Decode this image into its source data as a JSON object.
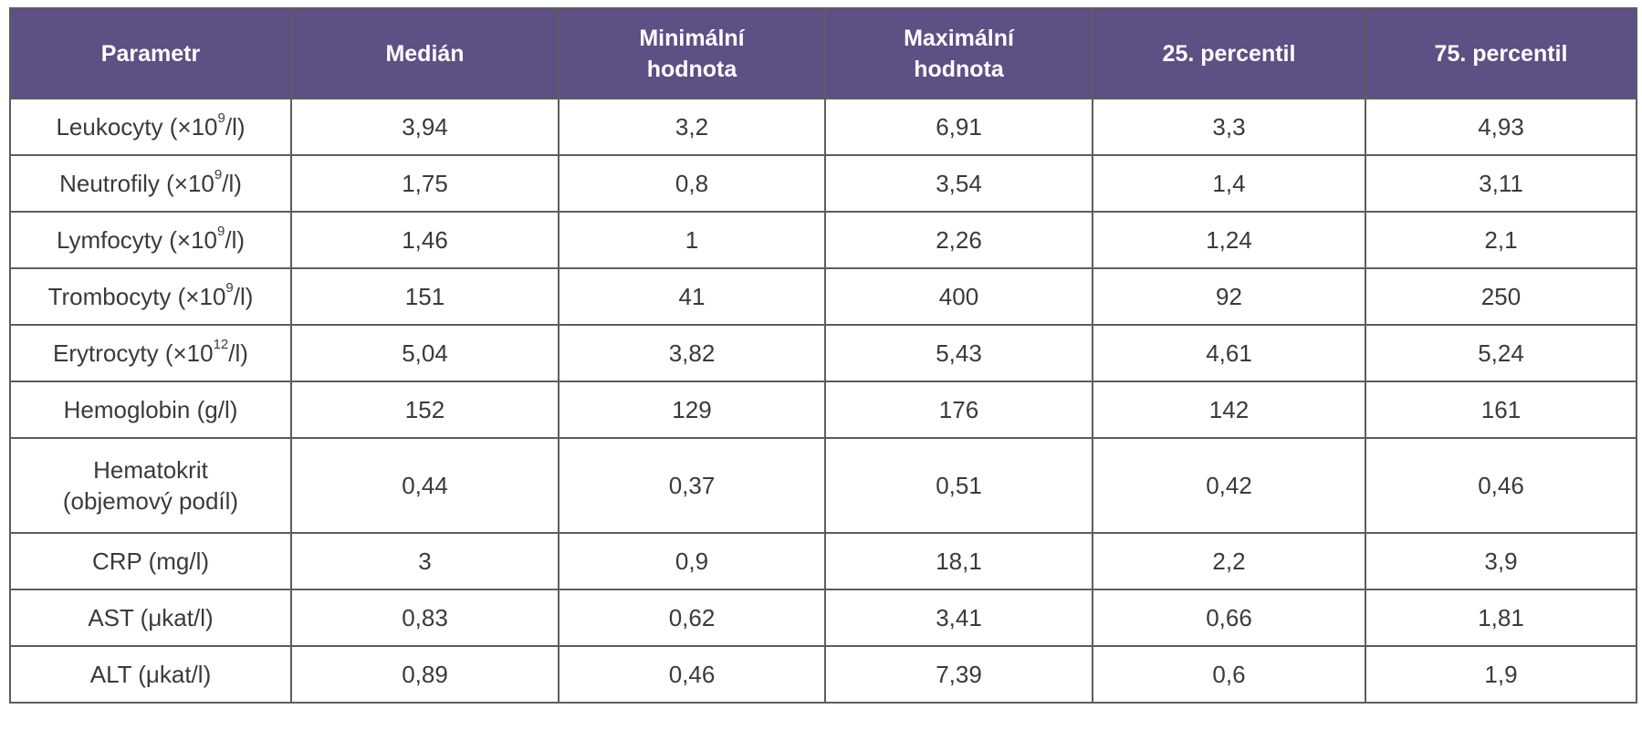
{
  "table": {
    "headers": [
      "Parametr",
      "Medián",
      "Minimální\nhodnota",
      "Maximální\nhodnota",
      "25. percentil",
      "75. percentil"
    ],
    "rows": [
      {
        "param": "Leukocyty (×10",
        "sup": "9",
        "unit": "/l)",
        "values": [
          "3,94",
          "3,2",
          "6,91",
          "3,3",
          "4,93"
        ]
      },
      {
        "param": "Neutrofily (×10",
        "sup": "9",
        "unit": "/l)",
        "values": [
          "1,75",
          "0,8",
          "3,54",
          "1,4",
          "3,11"
        ]
      },
      {
        "param": "Lymfocyty (×10",
        "sup": "9",
        "unit": "/l)",
        "values": [
          "1,46",
          "1",
          "2,26",
          "1,24",
          "2,1"
        ]
      },
      {
        "param": "Trombocyty (×10",
        "sup": "9",
        "unit": "/l)",
        "values": [
          "151",
          "41",
          "400",
          "92",
          "250"
        ]
      },
      {
        "param": "Erytrocyty (×10",
        "sup": "12",
        "unit": "/l)",
        "values": [
          "5,04",
          "3,82",
          "5,43",
          "4,61",
          "5,24"
        ]
      },
      {
        "param": "Hemoglobin (g/l)",
        "values": [
          "152",
          "129",
          "176",
          "142",
          "161"
        ]
      },
      {
        "param": "Hematokrit\n(objemový podíl)",
        "values": [
          "0,44",
          "0,37",
          "0,51",
          "0,42",
          "0,46"
        ]
      },
      {
        "param": "CRP (mg/l)",
        "values": [
          "3",
          "0,9",
          "18,1",
          "2,2",
          "3,9"
        ]
      },
      {
        "param": "AST (μkat/l)",
        "values": [
          "0,83",
          "0,62",
          "3,41",
          "0,66",
          "1,81"
        ]
      },
      {
        "param": "ALT (μkat/l)",
        "values": [
          "0,89",
          "0,46",
          "7,39",
          "0,6",
          "1,9"
        ]
      }
    ]
  }
}
